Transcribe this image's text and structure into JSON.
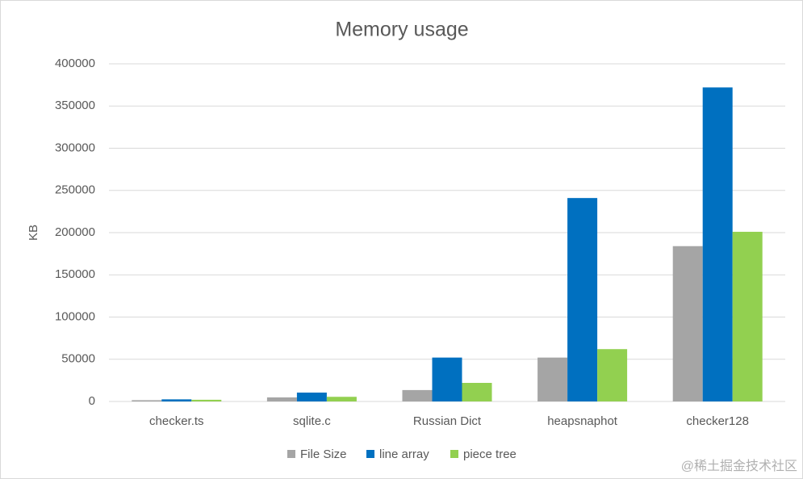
{
  "chart_data": {
    "type": "bar",
    "title": "Memory usage",
    "y_label": "KB",
    "categories": [
      "checker.ts",
      "sqlite.c",
      "Russian Dict",
      "heapsnaphot",
      "checker128"
    ],
    "series": [
      {
        "name": "File Size",
        "color": "#a5a5a5",
        "values": [
          1500,
          4800,
          13500,
          52000,
          184000
        ]
      },
      {
        "name": "line array",
        "color": "#0070c0",
        "values": [
          2500,
          10500,
          52000,
          241000,
          372000
        ]
      },
      {
        "name": "piece tree",
        "color": "#92d050",
        "values": [
          2000,
          5500,
          22000,
          62000,
          201000
        ]
      }
    ],
    "ylim": [
      0,
      400000
    ],
    "yticks": [
      0,
      50000,
      100000,
      150000,
      200000,
      250000,
      300000,
      350000,
      400000
    ],
    "grid": true,
    "legend": "bottom",
    "watermark": "@稀土掘金技术社区"
  }
}
